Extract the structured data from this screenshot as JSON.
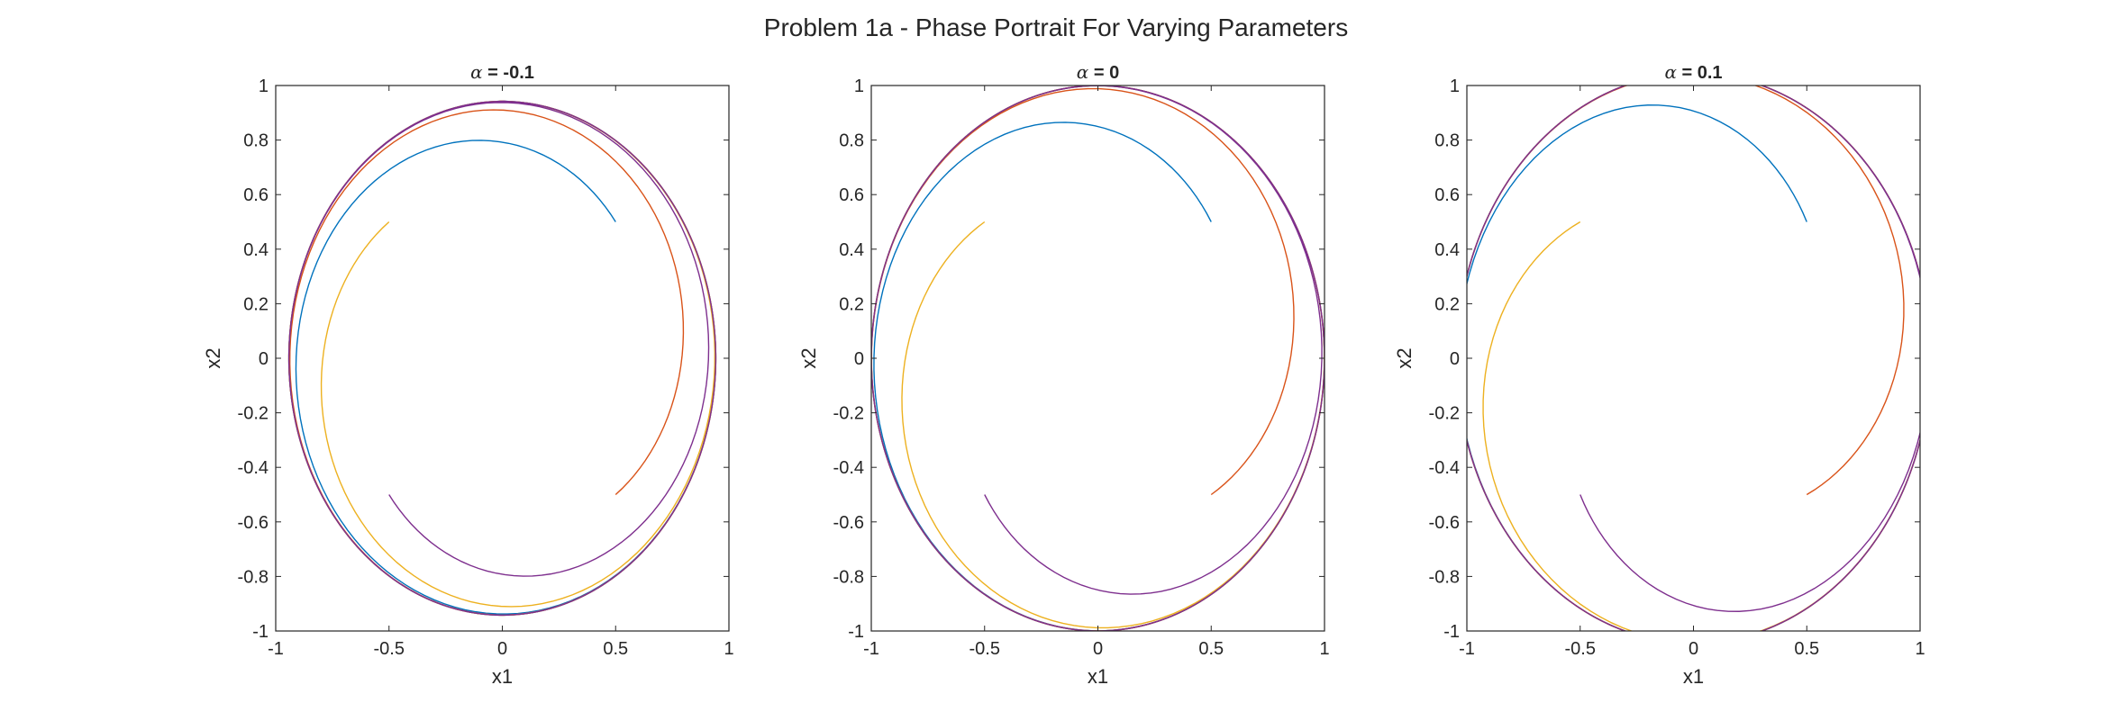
{
  "figure": {
    "title": "Problem 1a - Phase Portrait For Varying Parameters"
  },
  "colors": {
    "series_order": [
      "#0072BD",
      "#D95319",
      "#EDB120",
      "#7E2F8E"
    ],
    "axes": "#262626"
  },
  "chart_data": [
    {
      "type": "line",
      "title_symbol": "α",
      "title_rest": " = -0.1",
      "alpha": -0.1,
      "xlabel": "x1",
      "ylabel": "x2",
      "xlim": [
        -1,
        1
      ],
      "ylim": [
        -1,
        1
      ],
      "xticks": [
        "-1",
        "-0.5",
        "0",
        "0.5",
        "1"
      ],
      "yticks": [
        "-1",
        "-0.8",
        "-0.6",
        "-0.4",
        "-0.2",
        "0",
        "0.2",
        "0.4",
        "0.6",
        "0.8",
        "1"
      ],
      "grid": false,
      "trajectory_model": "polar: r' = alpha*r + r^3 - r^5, theta' = 1",
      "initial_conditions": [
        [
          0.5,
          0.5
        ],
        [
          0.5,
          -0.5
        ],
        [
          -0.5,
          0.5
        ],
        [
          -0.5,
          -0.5
        ]
      ],
      "t_span": [
        0,
        30
      ]
    },
    {
      "type": "line",
      "title_symbol": "α",
      "title_rest": " = 0",
      "alpha": 0,
      "xlabel": "x1",
      "ylabel": "x2",
      "xlim": [
        -1,
        1
      ],
      "ylim": [
        -1,
        1
      ],
      "xticks": [
        "-1",
        "-0.5",
        "0",
        "0.5",
        "1"
      ],
      "yticks": [
        "-1",
        "-0.8",
        "-0.6",
        "-0.4",
        "-0.2",
        "0",
        "0.2",
        "0.4",
        "0.6",
        "0.8",
        "1"
      ],
      "grid": false,
      "trajectory_model": "polar: r' = alpha*r + r^3 - r^5, theta' = 1",
      "initial_conditions": [
        [
          0.5,
          0.5
        ],
        [
          0.5,
          -0.5
        ],
        [
          -0.5,
          0.5
        ],
        [
          -0.5,
          -0.5
        ]
      ],
      "t_span": [
        0,
        100
      ]
    },
    {
      "type": "line",
      "title_symbol": "α",
      "title_rest": " = 0.1",
      "alpha": 0.1,
      "xlabel": "x1",
      "ylabel": "x2",
      "xlim": [
        -1,
        1
      ],
      "ylim": [
        -1,
        1
      ],
      "xticks": [
        "-1",
        "-0.5",
        "0",
        "0.5",
        "1"
      ],
      "yticks": [
        "-1",
        "-0.8",
        "-0.6",
        "-0.4",
        "-0.2",
        "0",
        "0.2",
        "0.4",
        "0.6",
        "0.8",
        "1"
      ],
      "grid": false,
      "trajectory_model": "polar: r' = alpha*r + r^3 - r^5, theta' = 1",
      "initial_conditions": [
        [
          0.5,
          0.5
        ],
        [
          0.5,
          -0.5
        ],
        [
          -0.5,
          0.5
        ],
        [
          -0.5,
          -0.5
        ]
      ],
      "t_span": [
        0,
        30
      ]
    }
  ]
}
